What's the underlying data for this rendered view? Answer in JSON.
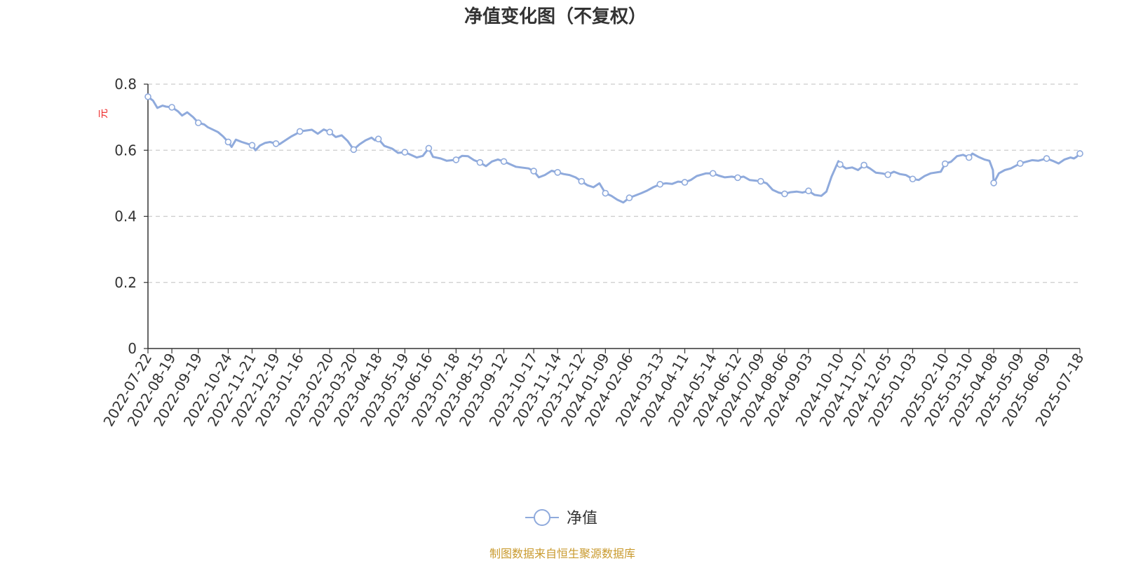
{
  "chart_data": {
    "type": "line",
    "title": "净值变化图（不复权）",
    "ylabel": "元",
    "ylim": [
      0,
      0.8
    ],
    "yticks": [
      "0",
      "0.2",
      "0.4",
      "0.6",
      "0.8"
    ],
    "grid": true,
    "legend_position": "bottom-center",
    "x": [
      "2022-07-22",
      "2022-08-19",
      "2022-09-19",
      "2022-10-24",
      "2022-11-21",
      "2022-12-19",
      "2023-01-16",
      "2023-02-20",
      "2023-03-20",
      "2023-04-18",
      "2023-05-19",
      "2023-06-16",
      "2023-07-18",
      "2023-08-15",
      "2023-09-12",
      "2023-10-17",
      "2023-11-14",
      "2023-12-12",
      "2024-01-09",
      "2024-02-06",
      "2024-03-13",
      "2024-04-11",
      "2024-05-14",
      "2024-06-12",
      "2024-07-09",
      "2024-08-06",
      "2024-09-03",
      "2024-10-10",
      "2024-11-07",
      "2024-12-05",
      "2025-01-03",
      "2025-02-10",
      "2025-03-10",
      "2025-04-08",
      "2025-05-09",
      "2025-06-09",
      "2025-07-18"
    ],
    "series": [
      {
        "name": "净值",
        "color": "#8faadc",
        "markers": [
          [
            "2022-07-22",
            0.762
          ],
          [
            "2022-08-19",
            0.73
          ],
          [
            "2022-09-19",
            0.683
          ],
          [
            "2022-10-24",
            0.625
          ],
          [
            "2022-11-21",
            0.615
          ],
          [
            "2022-12-19",
            0.62
          ],
          [
            "2023-01-16",
            0.657
          ],
          [
            "2023-02-20",
            0.655
          ],
          [
            "2023-03-20",
            0.602
          ],
          [
            "2023-04-18",
            0.634
          ],
          [
            "2023-05-19",
            0.594
          ],
          [
            "2023-06-16",
            0.606
          ],
          [
            "2023-07-18",
            0.571
          ],
          [
            "2023-08-15",
            0.563
          ],
          [
            "2023-09-12",
            0.566
          ],
          [
            "2023-10-17",
            0.537
          ],
          [
            "2023-11-14",
            0.533
          ],
          [
            "2023-12-12",
            0.506
          ],
          [
            "2024-01-09",
            0.47
          ],
          [
            "2024-02-06",
            0.456
          ],
          [
            "2024-03-13",
            0.497
          ],
          [
            "2024-04-11",
            0.503
          ],
          [
            "2024-05-14",
            0.53
          ],
          [
            "2024-06-12",
            0.517
          ],
          [
            "2024-07-09",
            0.506
          ],
          [
            "2024-08-06",
            0.468
          ],
          [
            "2024-09-03",
            0.477
          ],
          [
            "2024-10-10",
            0.557
          ],
          [
            "2024-11-07",
            0.555
          ],
          [
            "2024-12-05",
            0.526
          ],
          [
            "2025-01-03",
            0.513
          ],
          [
            "2025-02-10",
            0.559
          ],
          [
            "2025-03-10",
            0.578
          ],
          [
            "2025-04-08",
            0.501
          ],
          [
            "2025-05-09",
            0.56
          ],
          [
            "2025-06-09",
            0.575
          ],
          [
            "2025-07-18",
            0.59
          ]
        ],
        "values": [
          [
            "2022-07-22",
            0.762
          ],
          [
            "2022-07-28",
            0.75
          ],
          [
            "2022-08-02",
            0.728
          ],
          [
            "2022-08-08",
            0.735
          ],
          [
            "2022-08-12",
            0.732
          ],
          [
            "2022-08-19",
            0.73
          ],
          [
            "2022-08-26",
            0.718
          ],
          [
            "2022-08-31",
            0.705
          ],
          [
            "2022-09-06",
            0.715
          ],
          [
            "2022-09-13",
            0.7
          ],
          [
            "2022-09-19",
            0.683
          ],
          [
            "2022-09-26",
            0.678
          ],
          [
            "2022-09-30",
            0.67
          ],
          [
            "2022-10-12",
            0.655
          ],
          [
            "2022-10-18",
            0.642
          ],
          [
            "2022-10-24",
            0.625
          ],
          [
            "2022-10-28",
            0.61
          ],
          [
            "2022-11-02",
            0.632
          ],
          [
            "2022-11-09",
            0.625
          ],
          [
            "2022-11-15",
            0.62
          ],
          [
            "2022-11-21",
            0.615
          ],
          [
            "2022-11-25",
            0.6
          ],
          [
            "2022-11-30",
            0.614
          ],
          [
            "2022-12-06",
            0.622
          ],
          [
            "2022-12-12",
            0.625
          ],
          [
            "2022-12-19",
            0.62
          ],
          [
            "2022-12-23",
            0.618
          ],
          [
            "2022-12-30",
            0.63
          ],
          [
            "2023-01-06",
            0.642
          ],
          [
            "2023-01-12",
            0.65
          ],
          [
            "2023-01-16",
            0.657
          ],
          [
            "2023-01-30",
            0.662
          ],
          [
            "2023-02-06",
            0.65
          ],
          [
            "2023-02-13",
            0.663
          ],
          [
            "2023-02-20",
            0.655
          ],
          [
            "2023-02-27",
            0.64
          ],
          [
            "2023-03-06",
            0.645
          ],
          [
            "2023-03-13",
            0.628
          ],
          [
            "2023-03-20",
            0.602
          ],
          [
            "2023-03-27",
            0.618
          ],
          [
            "2023-04-03",
            0.63
          ],
          [
            "2023-04-10",
            0.638
          ],
          [
            "2023-04-14",
            0.63
          ],
          [
            "2023-04-18",
            0.634
          ],
          [
            "2023-04-25",
            0.613
          ],
          [
            "2023-05-04",
            0.605
          ],
          [
            "2023-05-11",
            0.592
          ],
          [
            "2023-05-19",
            0.594
          ],
          [
            "2023-05-26",
            0.586
          ],
          [
            "2023-06-02",
            0.578
          ],
          [
            "2023-06-09",
            0.583
          ],
          [
            "2023-06-16",
            0.606
          ],
          [
            "2023-06-21",
            0.58
          ],
          [
            "2023-06-30",
            0.575
          ],
          [
            "2023-07-07",
            0.568
          ],
          [
            "2023-07-18",
            0.571
          ],
          [
            "2023-07-25",
            0.583
          ],
          [
            "2023-08-01",
            0.582
          ],
          [
            "2023-08-08",
            0.57
          ],
          [
            "2023-08-15",
            0.563
          ],
          [
            "2023-08-22",
            0.552
          ],
          [
            "2023-08-29",
            0.566
          ],
          [
            "2023-09-05",
            0.572
          ],
          [
            "2023-09-12",
            0.566
          ],
          [
            "2023-09-19",
            0.558
          ],
          [
            "2023-09-26",
            0.55
          ],
          [
            "2023-10-11",
            0.545
          ],
          [
            "2023-10-17",
            0.537
          ],
          [
            "2023-10-23",
            0.518
          ],
          [
            "2023-10-30",
            0.525
          ],
          [
            "2023-11-07",
            0.538
          ],
          [
            "2023-11-14",
            0.533
          ],
          [
            "2023-11-21",
            0.528
          ],
          [
            "2023-11-28",
            0.525
          ],
          [
            "2023-12-05",
            0.518
          ],
          [
            "2023-12-12",
            0.506
          ],
          [
            "2023-12-19",
            0.494
          ],
          [
            "2023-12-26",
            0.488
          ],
          [
            "2024-01-02",
            0.5
          ],
          [
            "2024-01-09",
            0.47
          ],
          [
            "2024-01-16",
            0.462
          ],
          [
            "2024-01-23",
            0.45
          ],
          [
            "2024-01-30",
            0.442
          ],
          [
            "2024-02-06",
            0.456
          ],
          [
            "2024-02-20",
            0.47
          ],
          [
            "2024-02-27",
            0.478
          ],
          [
            "2024-03-05",
            0.488
          ],
          [
            "2024-03-13",
            0.497
          ],
          [
            "2024-03-20",
            0.5
          ],
          [
            "2024-03-27",
            0.498
          ],
          [
            "2024-04-03",
            0.505
          ],
          [
            "2024-04-11",
            0.503
          ],
          [
            "2024-04-18",
            0.51
          ],
          [
            "2024-04-25",
            0.522
          ],
          [
            "2024-05-06",
            0.53
          ],
          [
            "2024-05-14",
            0.53
          ],
          [
            "2024-05-21",
            0.523
          ],
          [
            "2024-05-28",
            0.518
          ],
          [
            "2024-06-05",
            0.52
          ],
          [
            "2024-06-12",
            0.517
          ],
          [
            "2024-06-19",
            0.52
          ],
          [
            "2024-06-26",
            0.51
          ],
          [
            "2024-07-03",
            0.508
          ],
          [
            "2024-07-09",
            0.506
          ],
          [
            "2024-07-16",
            0.5
          ],
          [
            "2024-07-23",
            0.48
          ],
          [
            "2024-07-30",
            0.472
          ],
          [
            "2024-08-06",
            0.468
          ],
          [
            "2024-08-13",
            0.473
          ],
          [
            "2024-08-20",
            0.475
          ],
          [
            "2024-08-27",
            0.472
          ],
          [
            "2024-09-03",
            0.477
          ],
          [
            "2024-09-10",
            0.465
          ],
          [
            "2024-09-18",
            0.462
          ],
          [
            "2024-09-24",
            0.475
          ],
          [
            "2024-09-30",
            0.52
          ],
          [
            "2024-10-08",
            0.567
          ],
          [
            "2024-10-10",
            0.557
          ],
          [
            "2024-10-17",
            0.545
          ],
          [
            "2024-10-24",
            0.548
          ],
          [
            "2024-10-31",
            0.54
          ],
          [
            "2024-11-07",
            0.555
          ],
          [
            "2024-11-14",
            0.545
          ],
          [
            "2024-11-21",
            0.532
          ],
          [
            "2024-11-28",
            0.53
          ],
          [
            "2024-12-05",
            0.526
          ],
          [
            "2024-12-12",
            0.535
          ],
          [
            "2024-12-19",
            0.528
          ],
          [
            "2024-12-26",
            0.525
          ],
          [
            "2025-01-03",
            0.513
          ],
          [
            "2025-01-10",
            0.51
          ],
          [
            "2025-01-17",
            0.522
          ],
          [
            "2025-01-24",
            0.53
          ],
          [
            "2025-02-05",
            0.535
          ],
          [
            "2025-02-10",
            0.559
          ],
          [
            "2025-02-17",
            0.565
          ],
          [
            "2025-02-24",
            0.582
          ],
          [
            "2025-03-03",
            0.586
          ],
          [
            "2025-03-10",
            0.578
          ],
          [
            "2025-03-14",
            0.59
          ],
          [
            "2025-03-21",
            0.58
          ],
          [
            "2025-03-28",
            0.572
          ],
          [
            "2025-04-03",
            0.568
          ],
          [
            "2025-04-07",
            0.54
          ],
          [
            "2025-04-08",
            0.501
          ],
          [
            "2025-04-14",
            0.53
          ],
          [
            "2025-04-21",
            0.54
          ],
          [
            "2025-04-28",
            0.545
          ],
          [
            "2025-05-09",
            0.56
          ],
          [
            "2025-05-16",
            0.565
          ],
          [
            "2025-05-23",
            0.57
          ],
          [
            "2025-05-30",
            0.568
          ],
          [
            "2025-06-09",
            0.575
          ],
          [
            "2025-06-16",
            0.568
          ],
          [
            "2025-06-23",
            0.56
          ],
          [
            "2025-06-30",
            0.572
          ],
          [
            "2025-07-07",
            0.578
          ],
          [
            "2025-07-11",
            0.575
          ],
          [
            "2025-07-14",
            0.58
          ],
          [
            "2025-07-18",
            0.59
          ]
        ]
      }
    ],
    "axis_color": "#333333",
    "grid_color": "#cccccc",
    "title_color": "#333333",
    "ylabel_color": "#ee2222"
  },
  "footer": {
    "source_text": "制图数据来自恒生聚源数据库",
    "source_color": "#c99a2e"
  }
}
